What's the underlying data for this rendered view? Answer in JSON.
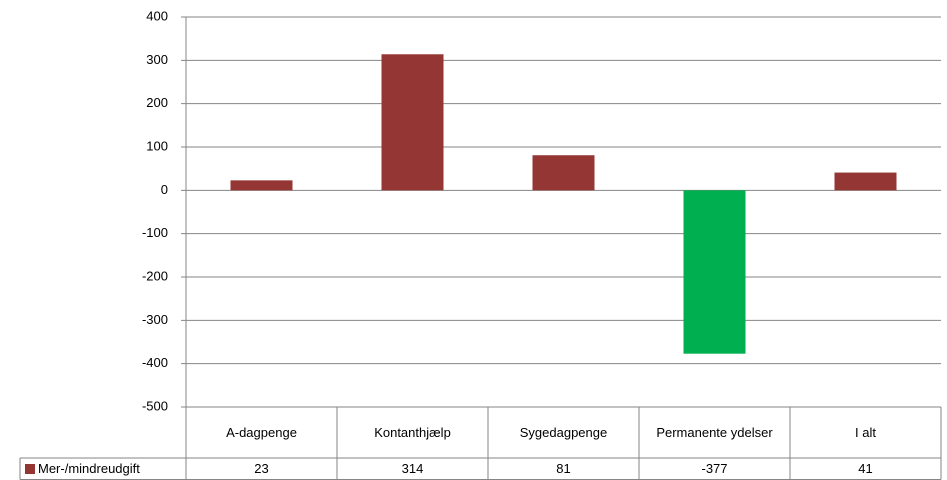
{
  "chart_data": {
    "type": "bar",
    "categories": [
      "A-dagpenge",
      "Kontanthjælp",
      "Sygedagpenge",
      "Permanente ydelser",
      "I alt"
    ],
    "series": [
      {
        "name": "Mer-/mindreudgift",
        "color": "#943634",
        "values": [
          23,
          314,
          81,
          -377,
          41
        ],
        "point_colors": [
          "#943634",
          "#943634",
          "#943634",
          "#00b050",
          "#943634"
        ]
      }
    ],
    "ylim": [
      -500,
      400
    ],
    "yticks": [
      -500,
      -400,
      -300,
      -200,
      -100,
      0,
      100,
      200,
      300,
      400
    ],
    "grid": true,
    "data_table": true
  }
}
